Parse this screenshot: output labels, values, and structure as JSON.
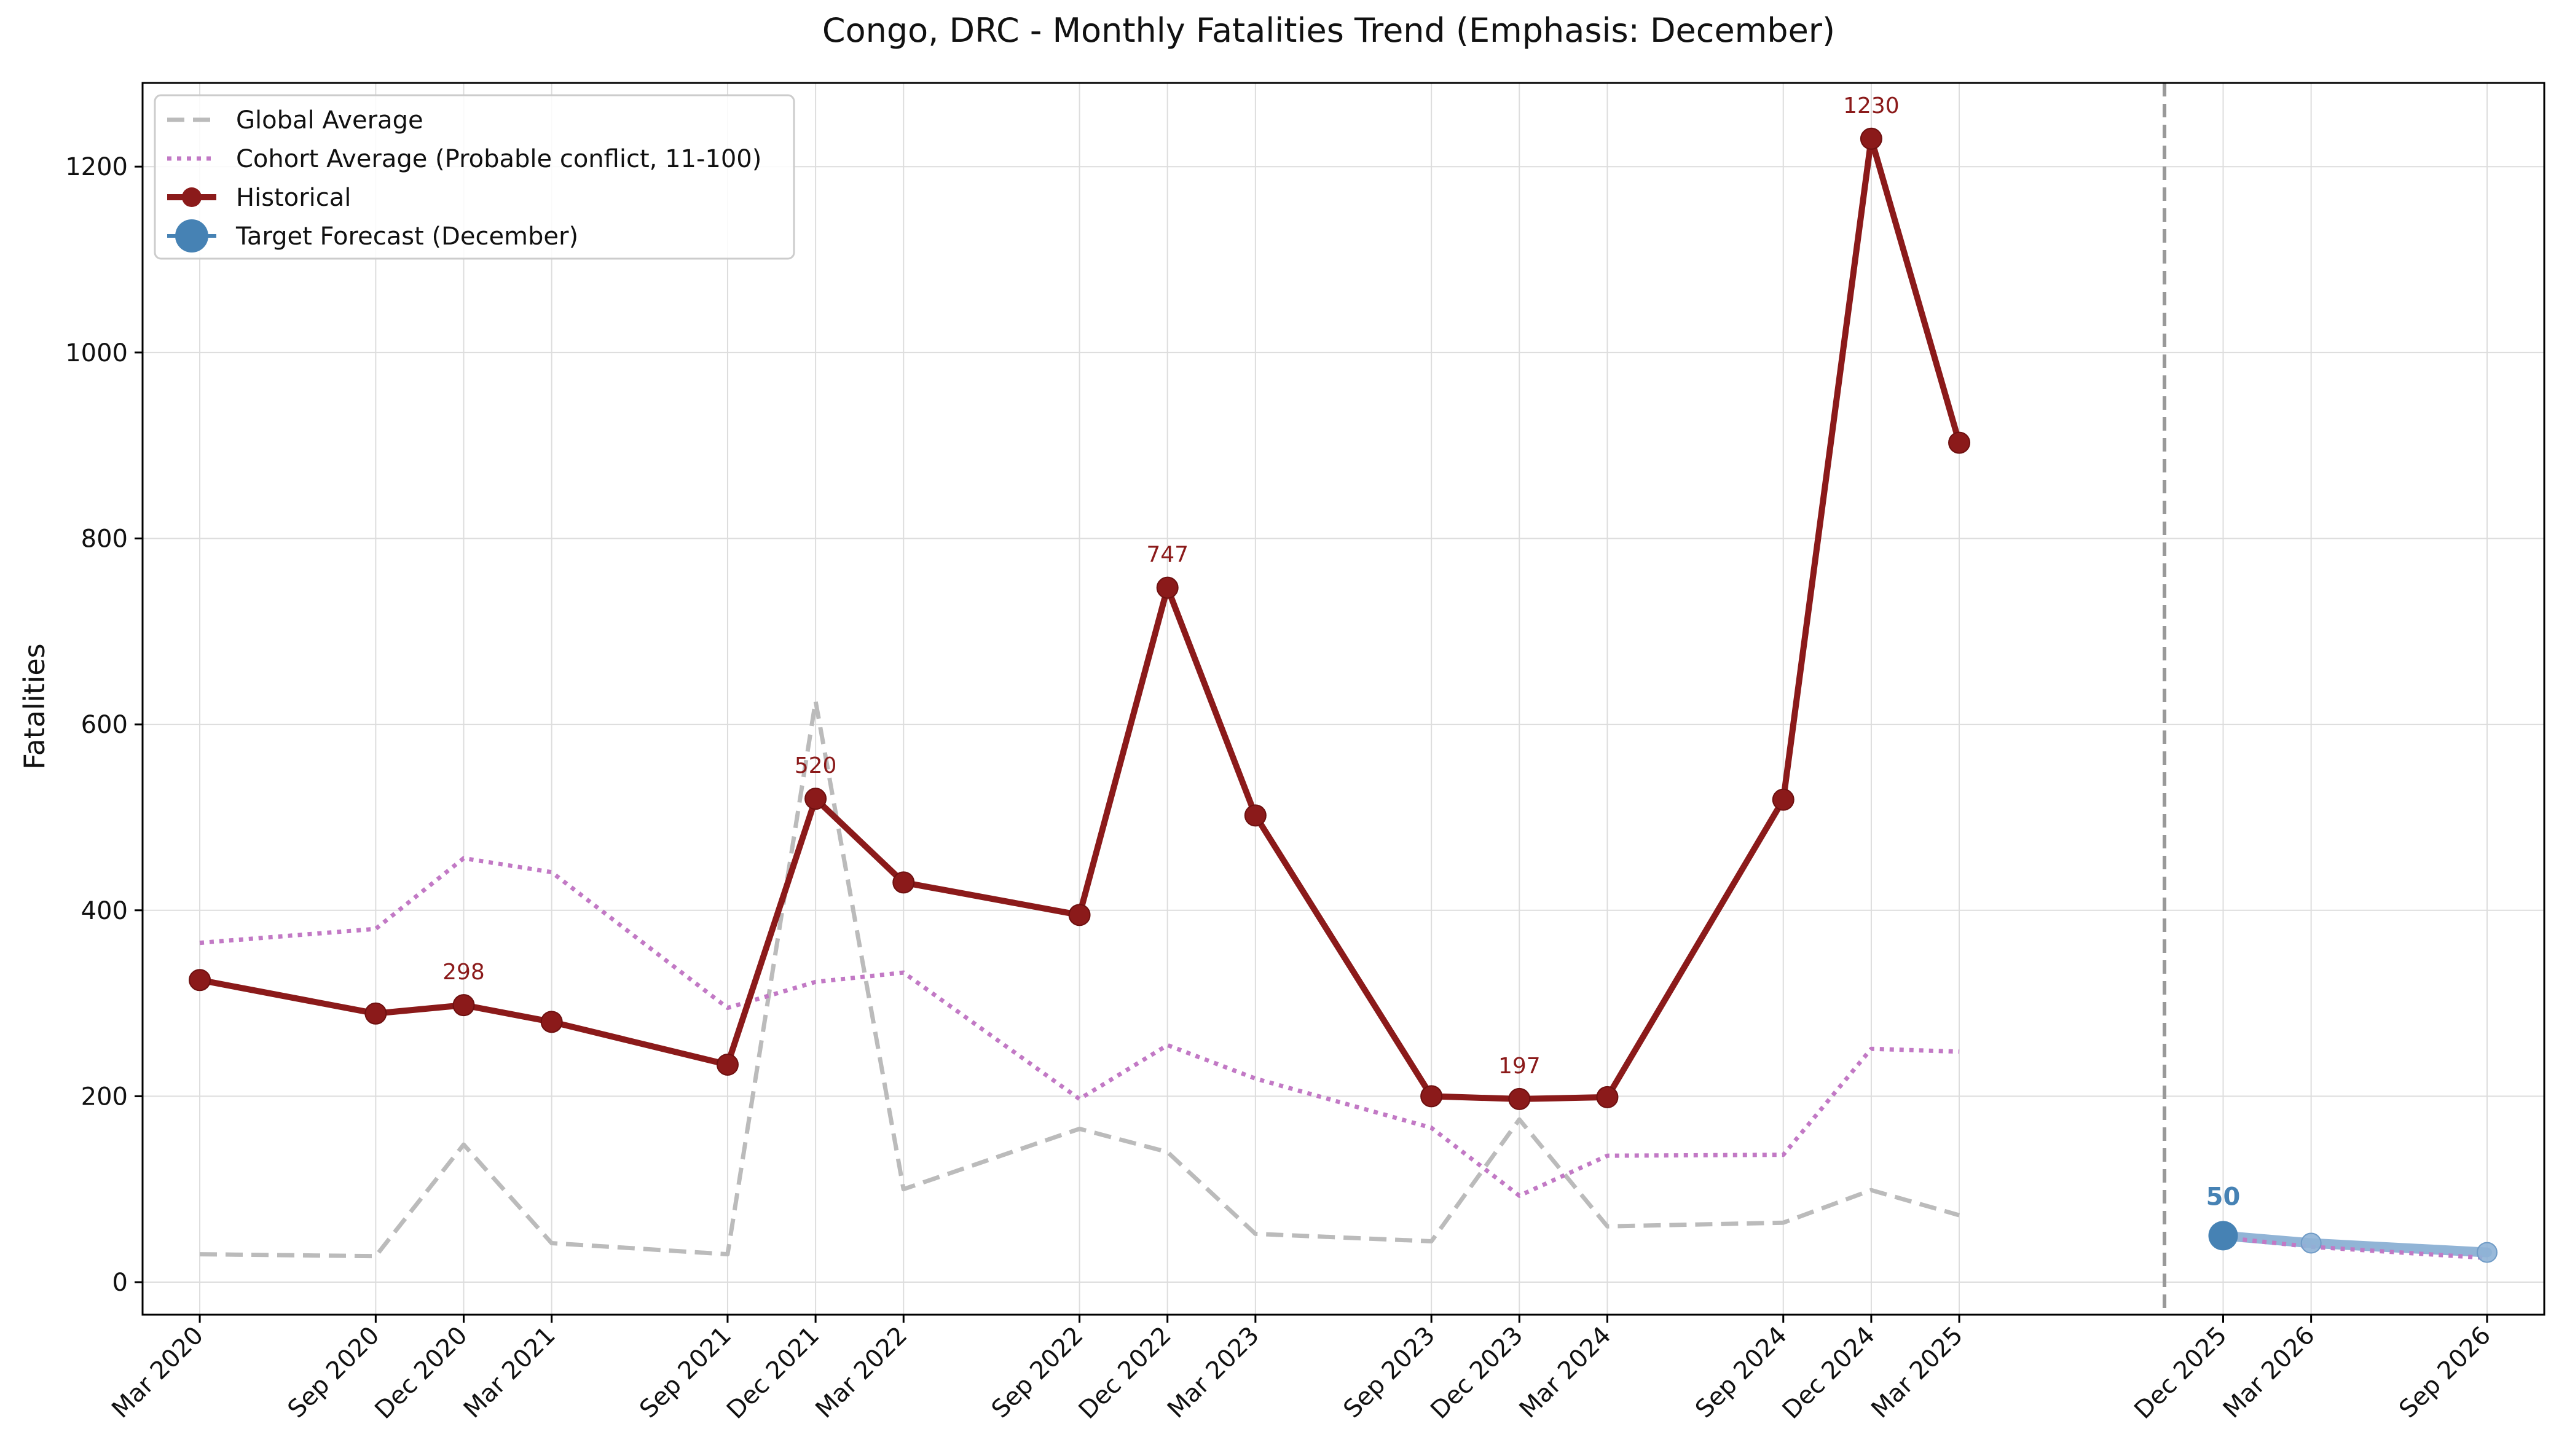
{
  "chart_data": {
    "type": "line",
    "title": "Congo, DRC - Monthly Fatalities Trend (Emphasis: December)",
    "xlabel": "",
    "ylabel": "Fatalities",
    "ylim": [
      -35,
      1290
    ],
    "yticks": [
      0,
      200,
      400,
      600,
      800,
      1000,
      1200
    ],
    "grid": true,
    "legend_position": "top-left",
    "x_dates": [
      "2020-03",
      "2020-09",
      "2020-12",
      "2021-03",
      "2021-09",
      "2021-12",
      "2022-03",
      "2022-09",
      "2022-12",
      "2023-03",
      "2023-09",
      "2023-12",
      "2024-03",
      "2024-09",
      "2024-12",
      "2025-03",
      "2025-12",
      "2026-03",
      "2026-09"
    ],
    "x_tick_labels": [
      "Mar 2020",
      "Sep 2020",
      "Dec 2020",
      "Mar 2021",
      "Sep 2021",
      "Dec 2021",
      "Mar 2022",
      "Sep 2022",
      "Dec 2022",
      "Mar 2023",
      "Sep 2023",
      "Dec 2023",
      "Mar 2024",
      "Sep 2024",
      "Dec 2024",
      "Mar 2025",
      "Dec 2025",
      "Mar 2026",
      "Sep 2026"
    ],
    "forecast_divider_date": "2025-10",
    "series": [
      {
        "name": "Global Average",
        "color": "#bbbbbb",
        "style": "dashed",
        "x": [
          "2020-03",
          "2020-09",
          "2020-12",
          "2021-03",
          "2021-09",
          "2021-12",
          "2022-03",
          "2022-09",
          "2022-12",
          "2023-03",
          "2023-09",
          "2023-12",
          "2024-03",
          "2024-09",
          "2024-12",
          "2025-03"
        ],
        "values": [
          30,
          28,
          148,
          42,
          30,
          625,
          100,
          165,
          140,
          52,
          44,
          175,
          60,
          64,
          99,
          72
        ]
      },
      {
        "name": "Cohort Average (Probable conflict, 11-100)",
        "color": "#c279c5",
        "style": "dotted",
        "x": [
          "2020-03",
          "2020-09",
          "2020-12",
          "2021-03",
          "2021-09",
          "2021-12",
          "2022-03",
          "2022-09",
          "2022-12",
          "2023-03",
          "2023-09",
          "2023-12",
          "2024-03",
          "2024-09",
          "2024-12",
          "2025-03"
        ],
        "values": [
          365,
          380,
          456,
          441,
          295,
          323,
          333,
          197,
          255,
          219,
          166,
          93,
          136,
          137,
          251,
          248
        ]
      },
      {
        "name": "Historical",
        "color": "#8b1a1a",
        "style": "solid",
        "x": [
          "2020-03",
          "2020-09",
          "2020-12",
          "2021-03",
          "2021-09",
          "2021-12",
          "2022-03",
          "2022-09",
          "2022-12",
          "2023-03",
          "2023-09",
          "2023-12",
          "2024-03",
          "2024-09",
          "2024-12",
          "2025-03"
        ],
        "values": [
          325,
          289,
          298,
          280,
          234,
          520,
          430,
          395,
          747,
          502,
          200,
          197,
          199,
          519,
          1230,
          903
        ],
        "labeled_points": [
          {
            "x": "2020-12",
            "label": "298"
          },
          {
            "x": "2021-12",
            "label": "520"
          },
          {
            "x": "2022-12",
            "label": "747"
          },
          {
            "x": "2023-12",
            "label": "197"
          },
          {
            "x": "2024-12",
            "label": "1230"
          }
        ]
      },
      {
        "name": "Target Forecast (December)",
        "color": "#4682b4",
        "style": "solid",
        "x": [
          "2025-12",
          "2026-03",
          "2026-09"
        ],
        "values": [
          50,
          42,
          32
        ],
        "labeled_points": [
          {
            "x": "2025-12",
            "label": "50"
          }
        ]
      }
    ],
    "forecast_cohort": {
      "color": "#c279c5",
      "style": "dotted",
      "x": [
        "2025-12",
        "2026-03",
        "2026-09"
      ],
      "values": [
        48,
        38,
        26
      ]
    }
  }
}
